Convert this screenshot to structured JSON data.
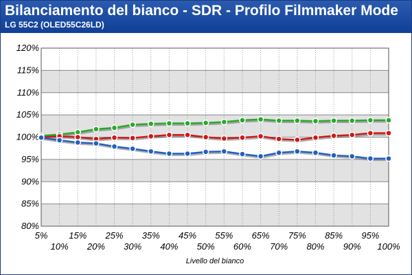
{
  "header": {
    "title": "Bilanciamento del bianco - SDR - Profilo Filmmaker Mode",
    "subtitle": "LG 55C2 (OLED55C26LD)"
  },
  "colors": {
    "header": "#1a4aa3",
    "band": "#e2e2e2",
    "red": "#cc1a1a",
    "green": "#2aa82a",
    "blue": "#2060c0"
  },
  "chart_data": {
    "type": "line",
    "title": "Bilanciamento del bianco - SDR - Profilo Filmmaker Mode",
    "subtitle": "LG 55C2 (OLED55C26LD)",
    "xlabel": "Livello del bianco",
    "ylabel": "",
    "categories": [
      "5%",
      "10%",
      "15%",
      "20%",
      "25%",
      "30%",
      "35%",
      "40%",
      "45%",
      "50%",
      "55%",
      "60%",
      "65%",
      "70%",
      "75%",
      "80%",
      "85%",
      "90%",
      "95%",
      "100%"
    ],
    "y_ticks": [
      "80%",
      "85%",
      "90%",
      "95%",
      "100%",
      "105%",
      "110%",
      "115%",
      "120%"
    ],
    "ylim": [
      80,
      120
    ],
    "grid": true,
    "series": [
      {
        "color": "green",
        "values": [
          100.3,
          100.6,
          101.1,
          101.8,
          102.1,
          102.8,
          103.0,
          103.1,
          103.1,
          103.2,
          103.4,
          103.8,
          104.0,
          103.7,
          103.7,
          103.6,
          103.7,
          103.7,
          103.8,
          103.8
        ]
      },
      {
        "color": "red",
        "values": [
          100.0,
          100.2,
          100.0,
          99.6,
          99.9,
          99.8,
          100.2,
          100.5,
          100.5,
          100.0,
          99.7,
          99.9,
          100.2,
          99.6,
          99.4,
          99.9,
          100.3,
          100.5,
          100.9,
          100.9
        ]
      },
      {
        "color": "blue",
        "values": [
          99.9,
          99.3,
          98.8,
          98.6,
          97.9,
          97.4,
          96.8,
          96.3,
          96.3,
          96.7,
          96.8,
          96.2,
          95.7,
          96.5,
          96.8,
          96.5,
          95.9,
          95.7,
          95.2,
          95.2
        ]
      }
    ]
  }
}
